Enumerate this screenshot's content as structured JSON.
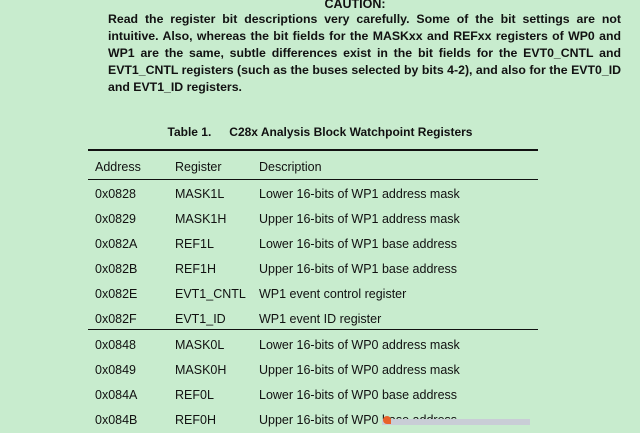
{
  "caution": {
    "title": "CAUTION:",
    "text": "Read the register bit descriptions very carefully.  Some of the bit settings are not intuitive. Also, whereas the bit fields for the MASKxx and REFxx registers of WP0 and WP1 are the same, subtle differences exist in the bit fields for the EVT0_CNTL and EVT1_CNTL registers (such as the buses selected by bits 4-2), and also for the EVT0_ID and EVT1_ID registers."
  },
  "table": {
    "number": "Table 1.",
    "title": "C28x Analysis Block Watchpoint Registers",
    "headers": [
      "Address",
      "Register",
      "Description"
    ],
    "rows": [
      [
        "0x0828",
        "MASK1L",
        "Lower 16-bits of WP1 address mask"
      ],
      [
        "0x0829",
        "MASK1H",
        "Upper 16-bits of WP1 address mask"
      ],
      [
        "0x082A",
        "REF1L",
        "Lower 16-bits of WP1 base address"
      ],
      [
        "0x082B",
        "REF1H",
        "Upper 16-bits of WP1 base address"
      ],
      [
        "0x082E",
        "EVT1_CNTL",
        "WP1 event control register"
      ],
      [
        "0x082F",
        "EVT1_ID",
        "WP1 event ID register"
      ],
      [
        "0x0848",
        "MASK0L",
        "Lower 16-bits of WP0 address mask"
      ],
      [
        "0x0849",
        "MASK0H",
        "Upper 16-bits of WP0 address mask"
      ],
      [
        "0x084A",
        "REF0L",
        "Lower 16-bits of WP0 base address"
      ],
      [
        "0x084B",
        "REF0H",
        "Upper 16-bits of WP0 base address"
      ]
    ]
  },
  "colors": {
    "background": "#c8ecce",
    "text": "#111111"
  }
}
